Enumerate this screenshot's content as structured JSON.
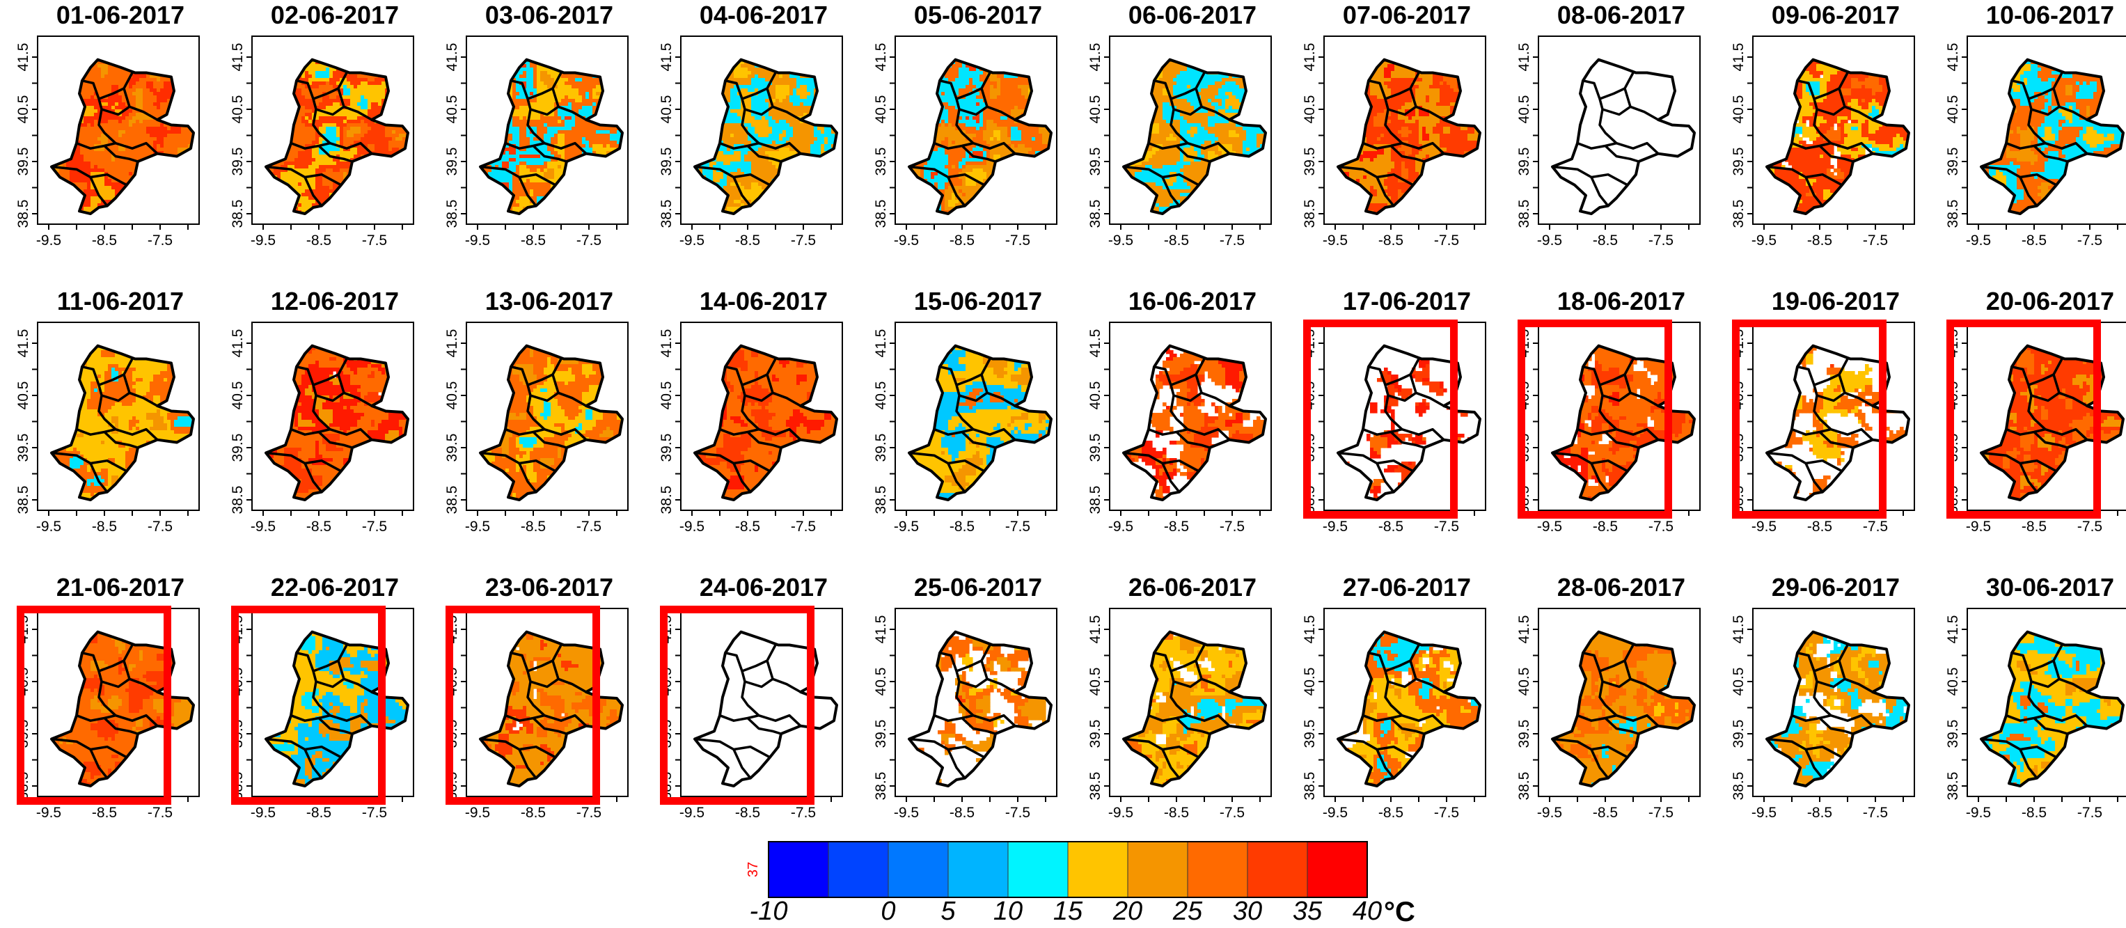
{
  "month": "06-2017",
  "panels": [
    {
      "title": "01-06-2017",
      "palette": [
        "#f59500",
        "#ff6a00",
        "#ff2d00",
        "#ffb300"
      ],
      "blank": 0.05,
      "highlight": false
    },
    {
      "title": "02-06-2017",
      "palette": [
        "#f59500",
        "#ff6a00",
        "#ff3b00",
        "#ffc400",
        "#00e5ff"
      ],
      "blank": 0.08,
      "highlight": false
    },
    {
      "title": "03-06-2017",
      "palette": [
        "#f59500",
        "#ffc400",
        "#ff6a00",
        "#00e5ff",
        "#ff3b00"
      ],
      "blank": 0.05,
      "highlight": false
    },
    {
      "title": "04-06-2017",
      "palette": [
        "#ffc400",
        "#f59500",
        "#00e5ff",
        "#ffb300"
      ],
      "blank": 0.0,
      "highlight": false
    },
    {
      "title": "05-06-2017",
      "palette": [
        "#ffc400",
        "#f59500",
        "#ff6a00",
        "#00e5ff",
        "#ff3b00"
      ],
      "blank": 0.0,
      "highlight": false
    },
    {
      "title": "06-06-2017",
      "palette": [
        "#ffc400",
        "#f59500",
        "#00e5ff",
        "#ffb300"
      ],
      "blank": 0.0,
      "highlight": false
    },
    {
      "title": "07-06-2017",
      "palette": [
        "#ff6a00",
        "#ff3b00",
        "#f59500",
        "#ff1a00"
      ],
      "blank": 0.0,
      "highlight": false
    },
    {
      "title": "08-06-2017",
      "palette": [
        "#00c8ff",
        "#ff6a00"
      ],
      "blank": 0.93,
      "highlight": false
    },
    {
      "title": "09-06-2017",
      "palette": [
        "#ff6a00",
        "#ff3b00",
        "#ffc400",
        "#00e5ff"
      ],
      "blank": 0.25,
      "highlight": false
    },
    {
      "title": "10-06-2017",
      "palette": [
        "#f59500",
        "#ff6a00",
        "#00e5ff",
        "#ffc400"
      ],
      "blank": 0.05,
      "highlight": false
    },
    {
      "title": "11-06-2017",
      "palette": [
        "#f59500",
        "#ffc400",
        "#ff6a00",
        "#00e5ff"
      ],
      "blank": 0.0,
      "highlight": false
    },
    {
      "title": "12-06-2017",
      "palette": [
        "#ff3b00",
        "#ff6a00",
        "#ff1a00",
        "#f59500"
      ],
      "blank": 0.15,
      "highlight": false
    },
    {
      "title": "13-06-2017",
      "palette": [
        "#f59500",
        "#ff6a00",
        "#ffc400",
        "#00e5ff"
      ],
      "blank": 0.0,
      "highlight": false
    },
    {
      "title": "14-06-2017",
      "palette": [
        "#ff3b00",
        "#ff6a00",
        "#ff1a00"
      ],
      "blank": 0.0,
      "highlight": false
    },
    {
      "title": "15-06-2017",
      "palette": [
        "#f59500",
        "#ffc400",
        "#00c8ff",
        "#ff6a00"
      ],
      "blank": 0.0,
      "highlight": false
    },
    {
      "title": "16-06-2017",
      "palette": [
        "#ff3b00",
        "#ff6a00",
        "#ff1a00"
      ],
      "blank": 0.45,
      "highlight": false
    },
    {
      "title": "17-06-2017",
      "palette": [
        "#ff3b00",
        "#ff1a00",
        "#ff6a00"
      ],
      "blank": 0.6,
      "highlight": true
    },
    {
      "title": "18-06-2017",
      "palette": [
        "#ff3b00",
        "#ff6a00",
        "#ff1a00"
      ],
      "blank": 0.3,
      "highlight": true
    },
    {
      "title": "19-06-2017",
      "palette": [
        "#ffc400",
        "#ff6a00",
        "#ff3b00"
      ],
      "blank": 0.55,
      "highlight": true
    },
    {
      "title": "20-06-2017",
      "palette": [
        "#ff6a00",
        "#ff3b00",
        "#f59500"
      ],
      "blank": 0.05,
      "highlight": true
    },
    {
      "title": "21-06-2017",
      "palette": [
        "#ff3b00",
        "#ff6a00",
        "#f59500"
      ],
      "blank": 0.0,
      "highlight": true
    },
    {
      "title": "22-06-2017",
      "palette": [
        "#00e5ff",
        "#ffc400",
        "#00c8ff",
        "#f59500"
      ],
      "blank": 0.0,
      "highlight": true
    },
    {
      "title": "23-06-2017",
      "palette": [
        "#ff6a00",
        "#f59500",
        "#ff3b00"
      ],
      "blank": 0.2,
      "highlight": true
    },
    {
      "title": "24-06-2017",
      "palette": [
        "#ff3b00",
        "#ff6a00",
        "#f59500"
      ],
      "blank": 0.9,
      "highlight": true
    },
    {
      "title": "25-06-2017",
      "palette": [
        "#ffc400",
        "#ff6a00",
        "#f59500",
        "#ff3b00"
      ],
      "blank": 0.55,
      "highlight": false
    },
    {
      "title": "26-06-2017",
      "palette": [
        "#ff6a00",
        "#ffc400",
        "#f59500",
        "#00e5ff"
      ],
      "blank": 0.3,
      "highlight": false
    },
    {
      "title": "27-06-2017",
      "palette": [
        "#00e5ff",
        "#ff6a00",
        "#ffc400",
        "#f59500"
      ],
      "blank": 0.25,
      "highlight": false
    },
    {
      "title": "28-06-2017",
      "palette": [
        "#00e5ff",
        "#f59500",
        "#ff6a00",
        "#ffc400"
      ],
      "blank": 0.15,
      "highlight": false
    },
    {
      "title": "29-06-2017",
      "palette": [
        "#00e5ff",
        "#f59500",
        "#ffc400"
      ],
      "blank": 0.35,
      "highlight": false
    },
    {
      "title": "30-06-2017",
      "palette": [
        "#f59500",
        "#ffc400",
        "#00e5ff",
        "#ff6a00"
      ],
      "blank": 0.05,
      "highlight": false
    }
  ],
  "axes": {
    "x_ticks": [
      "-9.5",
      "-8.5",
      "-7.5"
    ],
    "y_ticks": [
      "38.5",
      "39.5",
      "40.5",
      "41.5"
    ]
  },
  "legend": {
    "colors": [
      "#0000ff",
      "#0044ff",
      "#0078ff",
      "#00b4ff",
      "#00f4ff",
      "#ffc400",
      "#f59500",
      "#ff6a00",
      "#ff3b00",
      "#ff0000"
    ],
    "labels": [
      "-10",
      "",
      "0",
      "5",
      "10",
      "15",
      "20",
      "25",
      "30",
      "35",
      "40"
    ],
    "unit": "°C",
    "side_label": "37"
  },
  "highlight_color": "#ff0000"
}
